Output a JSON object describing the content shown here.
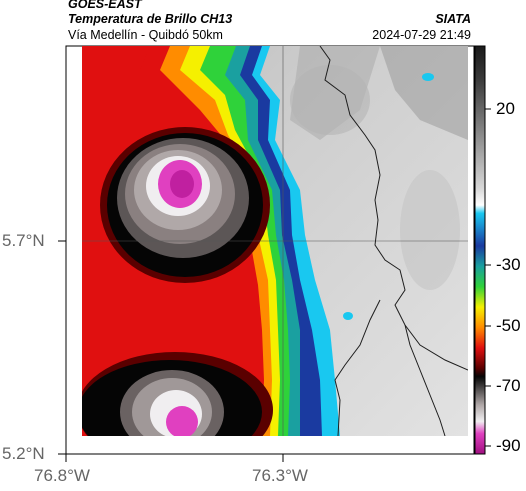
{
  "header": {
    "satellite": "GOES-EAST",
    "product": "Temperatura de Brillo CH13",
    "region": "Vía Medellín - Quibdó 50km",
    "source": "SIATA",
    "timestamp": "2024-07-29 21:49"
  },
  "axes": {
    "y_ticks": [
      "5.7°N",
      "5.2°N"
    ],
    "x_ticks": [
      "76.8°W",
      "76.3°W"
    ]
  },
  "colorbar": {
    "ticks": [
      "20",
      "-30",
      "-50",
      "-70",
      "-90"
    ],
    "colors": {
      "warm_gray_dark": "#2a2a2a",
      "warm_gray_light": "#dcdcdc",
      "white": "#ffffff",
      "cyan": "#19c8f0",
      "blue": "#1a3aa0",
      "green": "#2fd23a",
      "yellow": "#f5f000",
      "orange": "#ff8c00",
      "red": "#e01010",
      "dark_red": "#5a0000",
      "black": "#050505",
      "cloud_gray": "#8a8080",
      "magenta": "#e040c0"
    }
  }
}
